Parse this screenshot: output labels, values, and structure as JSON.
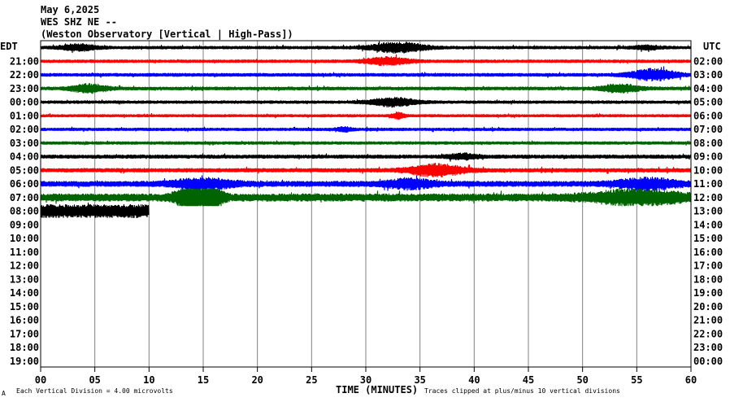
{
  "header": {
    "date": "May 6,2025",
    "station": "WES SHZ NE --",
    "observatory": "(Weston Observatory [Vertical | High-Pass])"
  },
  "left_axis_label": "EDT",
  "right_axis_label": "UTC",
  "footer": {
    "scale_text": "Each Vertical Division =    4.00 microvolts",
    "clip_text": "Traces clipped at plus/minus 10 vertical divisions",
    "corner_mark": "A"
  },
  "chart_data": {
    "type": "line",
    "title": "",
    "xlabel": "TIME (MINUTES)",
    "xlim": [
      0,
      60
    ],
    "x_ticks": [
      0,
      5,
      10,
      15,
      20,
      25,
      30,
      35,
      40,
      45,
      50,
      55,
      60
    ],
    "x_tick_labels": [
      "00",
      "05",
      "10",
      "15",
      "20",
      "25",
      "30",
      "35",
      "40",
      "45",
      "50",
      "55",
      "60"
    ],
    "grid": true,
    "edt_labels": [
      "",
      "21:00",
      "22:00",
      "23:00",
      "00:00",
      "01:00",
      "02:00",
      "03:00",
      "04:00",
      "05:00",
      "06:00",
      "07:00",
      "08:00",
      "09:00",
      "10:00",
      "11:00",
      "12:00",
      "13:00",
      "14:00",
      "15:00",
      "16:00",
      "17:00",
      "18:00",
      "19:00"
    ],
    "utc_labels": [
      "",
      "02:00",
      "03:00",
      "04:00",
      "05:00",
      "06:00",
      "07:00",
      "08:00",
      "09:00",
      "10:00",
      "11:00",
      "12:00",
      "13:00",
      "14:00",
      "15:00",
      "16:00",
      "17:00",
      "18:00",
      "19:00",
      "20:00",
      "21:00",
      "22:00",
      "23:00",
      "00:00"
    ],
    "series": [
      {
        "color": "#000000",
        "end_min": 60,
        "amp": 1.6,
        "bursts": [
          [
            3.5,
            1.2,
            2.2
          ],
          [
            33,
            1.8,
            3.5
          ],
          [
            56,
            1,
            1.2
          ]
        ]
      },
      {
        "color": "#ff0000",
        "end_min": 60,
        "amp": 1.6,
        "bursts": [
          [
            32,
            1.5,
            2.6
          ]
        ]
      },
      {
        "color": "#0000ff",
        "end_min": 60,
        "amp": 1.8,
        "bursts": [
          [
            56.5,
            1.5,
            3.5
          ]
        ]
      },
      {
        "color": "#006400",
        "end_min": 60,
        "amp": 1.8,
        "bursts": [
          [
            4.5,
            1.2,
            2.5
          ],
          [
            53.5,
            1.2,
            2.5
          ]
        ]
      },
      {
        "color": "#000000",
        "end_min": 60,
        "amp": 1.6,
        "bursts": [
          [
            32.5,
            1.5,
            3
          ]
        ]
      },
      {
        "color": "#ff0000",
        "end_min": 60,
        "amp": 1.5,
        "bursts": [
          [
            33,
            0.4,
            2.2
          ]
        ]
      },
      {
        "color": "#0000ff",
        "end_min": 60,
        "amp": 1.6,
        "bursts": [
          [
            28,
            0.5,
            1.5
          ]
        ]
      },
      {
        "color": "#006400",
        "end_min": 60,
        "amp": 1.6,
        "bursts": []
      },
      {
        "color": "#000000",
        "end_min": 60,
        "amp": 2.0,
        "bursts": [
          [
            39,
            1,
            1.4
          ]
        ]
      },
      {
        "color": "#ff0000",
        "end_min": 60,
        "amp": 2.2,
        "bursts": [
          [
            36.5,
            1.8,
            3
          ]
        ]
      },
      {
        "color": "#0000ff",
        "end_min": 60,
        "amp": 3.2,
        "bursts": [
          [
            15,
            2,
            1.6
          ],
          [
            34,
            1.5,
            1.5
          ],
          [
            56,
            2,
            1.8
          ]
        ]
      },
      {
        "color": "#006400",
        "end_min": 60,
        "amp": 4.5,
        "bursts": [
          [
            14,
            1,
            3
          ],
          [
            16,
            0.6,
            2.5
          ],
          [
            55,
            3,
            1.6
          ]
        ]
      },
      {
        "color": "#000000",
        "end_min": 10,
        "amp": 8.0,
        "bursts": []
      }
    ]
  }
}
